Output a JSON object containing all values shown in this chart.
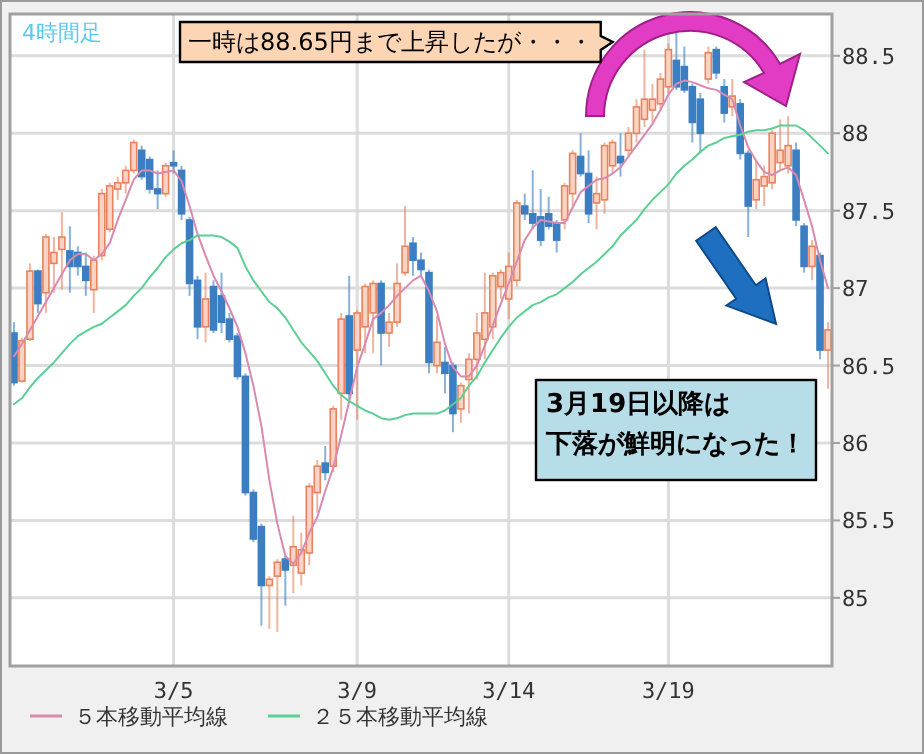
{
  "chart_data": {
    "type": "candlestick",
    "title": "4時間足",
    "categories": [
      null,
      null,
      null,
      null,
      null,
      null,
      null,
      null,
      null,
      null,
      null,
      null,
      null,
      null,
      null,
      null,
      null,
      null,
      null,
      null,
      "3/5",
      null,
      null,
      null,
      null,
      null,
      null,
      null,
      null,
      null,
      null,
      null,
      null,
      null,
      null,
      null,
      null,
      null,
      null,
      null,
      null,
      null,
      null,
      "3/9",
      null,
      null,
      null,
      null,
      null,
      null,
      null,
      null,
      null,
      null,
      null,
      null,
      null,
      null,
      null,
      null,
      null,
      null,
      "3/14",
      null,
      null,
      null,
      null,
      null,
      null,
      null,
      null,
      null,
      null,
      null,
      null,
      null,
      null,
      null,
      null,
      null,
      null,
      null,
      "3/19",
      null,
      null,
      null,
      null,
      null,
      null,
      null,
      null,
      null,
      null,
      null,
      null,
      null,
      null,
      null,
      null,
      null,
      null,
      null,
      null
    ],
    "ohlc": [
      [
        86.71,
        86.78,
        86.37,
        86.39
      ],
      [
        86.4,
        86.68,
        86.39,
        86.66
      ],
      [
        86.67,
        87.16,
        86.66,
        87.11
      ],
      [
        87.11,
        87.12,
        86.84,
        86.9
      ],
      [
        86.97,
        87.35,
        86.84,
        87.33
      ],
      [
        87.16,
        87.33,
        86.97,
        87.23
      ],
      [
        87.25,
        87.49,
        86.99,
        87.33
      ],
      [
        87.24,
        87.4,
        86.97,
        87.14
      ],
      [
        87.23,
        87.27,
        87.08,
        87.14
      ],
      [
        87.14,
        87.23,
        86.95,
        87.05
      ],
      [
        86.99,
        87.21,
        86.84,
        87.18
      ],
      [
        87.21,
        87.64,
        87.18,
        87.61
      ],
      [
        87.38,
        87.68,
        87.36,
        87.66
      ],
      [
        87.64,
        87.72,
        87.57,
        87.68
      ],
      [
        87.68,
        87.79,
        87.61,
        87.76
      ],
      [
        87.76,
        87.96,
        87.74,
        87.94
      ],
      [
        87.89,
        87.92,
        87.7,
        87.72
      ],
      [
        87.83,
        87.85,
        87.61,
        87.64
      ],
      [
        87.64,
        87.76,
        87.51,
        87.61
      ],
      [
        87.61,
        87.81,
        87.59,
        87.79
      ],
      [
        87.81,
        87.89,
        87.74,
        87.79
      ],
      [
        87.76,
        87.79,
        87.44,
        87.48
      ],
      [
        87.44,
        87.46,
        86.95,
        87.03
      ],
      [
        87.05,
        87.08,
        86.67,
        86.75
      ],
      [
        86.75,
        87.1,
        86.65,
        86.93
      ],
      [
        87.01,
        87.05,
        86.71,
        86.73
      ],
      [
        86.95,
        87.1,
        86.71,
        86.78
      ],
      [
        86.8,
        86.84,
        86.65,
        86.67
      ],
      [
        86.69,
        86.71,
        86.41,
        86.43
      ],
      [
        86.43,
        86.45,
        85.66,
        85.68
      ],
      [
        85.68,
        85.7,
        85.36,
        85.38
      ],
      [
        85.46,
        85.48,
        84.82,
        85.08
      ],
      [
        85.08,
        85.14,
        84.8,
        85.12
      ],
      [
        85.14,
        85.25,
        84.78,
        85.23
      ],
      [
        85.25,
        85.27,
        84.95,
        85.18
      ],
      [
        85.21,
        85.53,
        85.03,
        85.33
      ],
      [
        85.16,
        85.42,
        85.08,
        85.31
      ],
      [
        85.29,
        85.74,
        85.21,
        85.72
      ],
      [
        85.68,
        85.89,
        85.55,
        85.85
      ],
      [
        85.87,
        85.98,
        85.76,
        85.81
      ],
      [
        85.85,
        86.24,
        85.81,
        86.22
      ],
      [
        86.32,
        86.84,
        86.15,
        86.8
      ],
      [
        86.82,
        87.08,
        86.28,
        86.32
      ],
      [
        86.6,
        86.86,
        86.15,
        86.84
      ],
      [
        86.75,
        87.03,
        86.58,
        87.01
      ],
      [
        86.84,
        87.05,
        86.58,
        87.03
      ],
      [
        87.03,
        87.05,
        86.5,
        86.71
      ],
      [
        86.71,
        86.84,
        86.62,
        86.78
      ],
      [
        86.78,
        87.16,
        86.75,
        87.03
      ],
      [
        87.1,
        87.53,
        87.08,
        87.27
      ],
      [
        87.29,
        87.33,
        87.08,
        87.18
      ],
      [
        87.18,
        87.23,
        87.08,
        87.12
      ],
      [
        87.1,
        87.12,
        86.45,
        86.52
      ],
      [
        86.5,
        86.82,
        86.45,
        86.65
      ],
      [
        86.52,
        86.62,
        86.32,
        86.45
      ],
      [
        86.5,
        86.52,
        86.07,
        86.19
      ],
      [
        86.22,
        86.39,
        86.13,
        86.37
      ],
      [
        86.41,
        86.58,
        86.19,
        86.54
      ],
      [
        86.54,
        86.84,
        86.41,
        86.71
      ],
      [
        86.67,
        87.1,
        86.54,
        86.84
      ],
      [
        86.75,
        87.1,
        86.67,
        87.08
      ],
      [
        87.01,
        87.12,
        86.93,
        87.1
      ],
      [
        86.93,
        87.23,
        86.8,
        87.14
      ],
      [
        87.05,
        87.57,
        87.01,
        87.55
      ],
      [
        87.53,
        87.61,
        87.44,
        87.48
      ],
      [
        87.48,
        87.76,
        87.38,
        87.42
      ],
      [
        87.46,
        87.64,
        87.27,
        87.31
      ],
      [
        87.48,
        87.59,
        87.38,
        87.4
      ],
      [
        87.42,
        87.44,
        87.23,
        87.31
      ],
      [
        87.44,
        87.68,
        87.38,
        87.66
      ],
      [
        87.61,
        87.89,
        87.53,
        87.87
      ],
      [
        87.85,
        88.0,
        87.72,
        87.74
      ],
      [
        87.74,
        87.89,
        87.42,
        87.48
      ],
      [
        87.55,
        87.72,
        87.38,
        87.61
      ],
      [
        87.57,
        87.94,
        87.48,
        87.92
      ],
      [
        87.79,
        87.96,
        87.74,
        87.94
      ],
      [
        87.85,
        88.0,
        87.72,
        87.81
      ],
      [
        87.89,
        88.04,
        87.85,
        88.0
      ],
      [
        88.0,
        88.22,
        87.94,
        88.17
      ],
      [
        88.09,
        88.54,
        88.04,
        88.22
      ],
      [
        88.15,
        88.32,
        88.07,
        88.22
      ],
      [
        88.19,
        88.39,
        88.15,
        88.35
      ],
      [
        88.3,
        88.58,
        88.26,
        88.54
      ],
      [
        88.47,
        88.65,
        88.28,
        88.3
      ],
      [
        88.43,
        88.56,
        88.26,
        88.28
      ],
      [
        88.3,
        88.32,
        87.94,
        88.07
      ],
      [
        88.22,
        88.26,
        87.87,
        88.0
      ],
      [
        88.35,
        88.56,
        88.32,
        88.52
      ],
      [
        88.54,
        88.56,
        88.35,
        88.39
      ],
      [
        88.3,
        88.35,
        88.07,
        88.13
      ],
      [
        88.17,
        88.35,
        88.11,
        88.24
      ],
      [
        88.19,
        88.22,
        87.83,
        87.87
      ],
      [
        87.87,
        87.89,
        87.33,
        87.53
      ],
      [
        87.57,
        87.83,
        87.51,
        87.7
      ],
      [
        87.66,
        87.79,
        87.53,
        87.72
      ],
      [
        87.68,
        88.02,
        87.64,
        88.0
      ],
      [
        87.81,
        88.09,
        87.76,
        87.89
      ],
      [
        87.79,
        88.11,
        87.74,
        87.92
      ],
      [
        87.89,
        87.94,
        87.4,
        87.44
      ],
      [
        87.4,
        87.42,
        87.1,
        87.14
      ],
      [
        87.14,
        87.31,
        87.05,
        87.27
      ],
      [
        87.21,
        87.23,
        86.54,
        86.6
      ],
      [
        86.6,
        86.78,
        86.35,
        86.73
      ]
    ],
    "colors": [
      "#3b7ec1",
      "#e8825f",
      "#e8825f",
      "#3b7ec1",
      "#e8825f",
      "#e8825f",
      "#e8825f",
      "#3b7ec1",
      "#3b7ec1",
      "#3b7ec1",
      "#e8825f",
      "#e8825f",
      "#e8825f",
      "#e8825f",
      "#e8825f",
      "#e8825f",
      "#3b7ec1",
      "#3b7ec1",
      "#3b7ec1",
      "#e8825f",
      "#3b7ec1",
      "#3b7ec1",
      "#3b7ec1",
      "#3b7ec1",
      "#e8825f",
      "#3b7ec1",
      "#3b7ec1",
      "#3b7ec1",
      "#3b7ec1",
      "#3b7ec1",
      "#3b7ec1",
      "#3b7ec1",
      "#e8825f",
      "#e8825f",
      "#3b7ec1",
      "#e8825f",
      "#e8825f",
      "#e8825f",
      "#e8825f",
      "#3b7ec1",
      "#e8825f",
      "#e8825f",
      "#3b7ec1",
      "#e8825f",
      "#e8825f",
      "#e8825f",
      "#3b7ec1",
      "#e8825f",
      "#e8825f",
      "#e8825f",
      "#3b7ec1",
      "#3b7ec1",
      "#3b7ec1",
      "#e8825f",
      "#3b7ec1",
      "#3b7ec1",
      "#e8825f",
      "#e8825f",
      "#e8825f",
      "#e8825f",
      "#e8825f",
      "#e8825f",
      "#e8825f",
      "#e8825f",
      "#3b7ec1",
      "#3b7ec1",
      "#3b7ec1",
      "#3b7ec1",
      "#3b7ec1",
      "#e8825f",
      "#e8825f",
      "#3b7ec1",
      "#3b7ec1",
      "#e8825f",
      "#e8825f",
      "#e8825f",
      "#3b7ec1",
      "#e8825f",
      "#e8825f",
      "#e8825f",
      "#e8825f",
      "#e8825f",
      "#e8825f",
      "#3b7ec1",
      "#3b7ec1",
      "#3b7ec1",
      "#3b7ec1",
      "#e8825f",
      "#3b7ec1",
      "#3b7ec1",
      "#e8825f",
      "#3b7ec1",
      "#3b7ec1",
      "#e8825f",
      "#e8825f",
      "#e8825f",
      "#e8825f",
      "#e8825f",
      "#3b7ec1",
      "#3b7ec1",
      "#e8825f",
      "#3b7ec1",
      "#e8825f"
    ],
    "series": [
      {
        "name": "５本移動平均線",
        "type": "line",
        "color": "#d98ab0",
        "values": [
          86.56,
          86.64,
          86.73,
          86.82,
          86.91,
          87.0,
          87.09,
          87.18,
          87.22,
          87.22,
          87.18,
          87.22,
          87.29,
          87.44,
          87.57,
          87.7,
          87.76,
          87.76,
          87.74,
          87.75,
          87.76,
          87.69,
          87.53,
          87.35,
          87.21,
          87.08,
          86.98,
          86.87,
          86.75,
          86.58,
          86.37,
          86.11,
          85.76,
          85.48,
          85.27,
          85.22,
          85.29,
          85.42,
          85.52,
          85.69,
          85.84,
          86.05,
          86.27,
          86.49,
          86.64,
          86.8,
          86.84,
          86.89,
          86.95,
          87.0,
          87.05,
          87.08,
          86.98,
          86.85,
          86.64,
          86.49,
          86.43,
          86.43,
          86.5,
          86.63,
          86.76,
          86.9,
          87.03,
          87.17,
          87.31,
          87.39,
          87.44,
          87.43,
          87.42,
          87.42,
          87.52,
          87.62,
          87.66,
          87.7,
          87.71,
          87.74,
          87.78,
          87.85,
          87.92,
          87.99,
          88.06,
          88.15,
          88.25,
          88.32,
          88.34,
          88.33,
          88.31,
          88.29,
          88.28,
          88.25,
          88.22,
          88.05,
          87.91,
          87.82,
          87.75,
          87.73,
          87.76,
          87.78,
          87.73,
          87.57,
          87.4,
          87.18,
          87.0
        ]
      },
      {
        "name": "２５本移動平均線",
        "type": "line",
        "color": "#5ccf94",
        "values": [
          86.25,
          86.29,
          86.36,
          86.42,
          86.47,
          86.52,
          86.58,
          86.64,
          86.69,
          86.72,
          86.75,
          86.77,
          86.81,
          86.85,
          86.89,
          86.95,
          87.0,
          87.07,
          87.13,
          87.2,
          87.25,
          87.29,
          87.31,
          87.34,
          87.34,
          87.34,
          87.33,
          87.3,
          87.26,
          87.14,
          87.05,
          86.98,
          86.91,
          86.87,
          86.81,
          86.73,
          86.65,
          86.59,
          86.53,
          86.45,
          86.37,
          86.31,
          86.27,
          86.24,
          86.21,
          86.19,
          86.16,
          86.15,
          86.16,
          86.18,
          86.19,
          86.19,
          86.19,
          86.19,
          86.21,
          86.25,
          86.29,
          86.37,
          86.43,
          86.52,
          86.6,
          86.68,
          86.75,
          86.81,
          86.85,
          86.89,
          86.91,
          86.94,
          86.96,
          87.0,
          87.04,
          87.09,
          87.13,
          87.17,
          87.22,
          87.27,
          87.34,
          87.39,
          87.44,
          87.51,
          87.57,
          87.62,
          87.67,
          87.74,
          87.79,
          87.83,
          87.88,
          87.92,
          87.94,
          87.97,
          87.98,
          87.99,
          88.01,
          88.02,
          88.02,
          88.03,
          88.05,
          88.05,
          88.05,
          88.02,
          87.97,
          87.92,
          87.87
        ]
      }
    ],
    "ylim": [
      84.56,
      88.77
    ],
    "yticks": [
      85,
      85.5,
      86,
      86.5,
      87,
      87.5,
      88,
      88.5
    ],
    "grid": true,
    "legend": "bottom",
    "annotations": [
      "一時は88.65円まで上昇したが・・・",
      "3月19日以降は",
      "下落が鮮明になった！"
    ]
  }
}
